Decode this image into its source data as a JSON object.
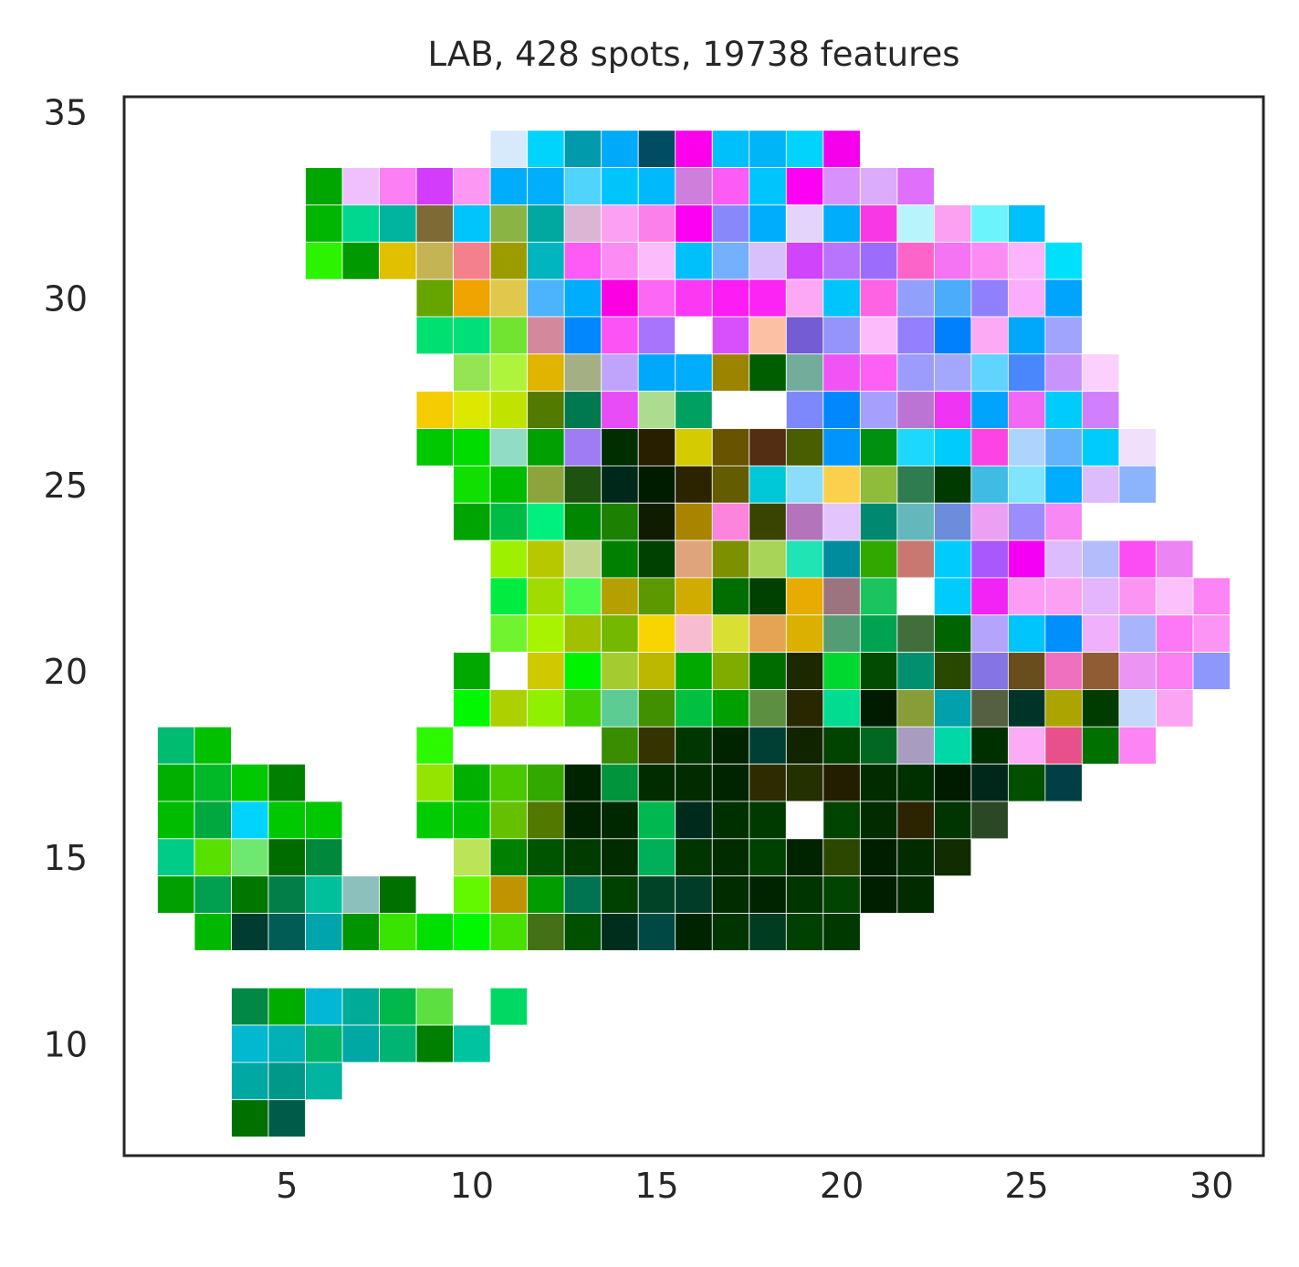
{
  "chart_data": {
    "type": "heatmap",
    "title": "LAB, 428 spots, 19738 features",
    "xlabel": "",
    "ylabel": "",
    "xlim": [
      0.6,
      31.4
    ],
    "ylim": [
      7.0,
      35.4
    ],
    "xticks": [
      5,
      10,
      15,
      20,
      25,
      30
    ],
    "yticks": [
      10,
      15,
      20,
      25,
      30,
      35
    ],
    "grid": false,
    "legend": "none",
    "cell_size": 1,
    "cell_edge_color": "#ffffff",
    "rows": [
      {
        "y": 34,
        "x_start": 11,
        "colors": [
          "#d6eafc",
          "#00d4fc",
          "#009aac",
          "#00aaf8",
          "#004c62",
          "#fc00ec",
          "#00c0fc",
          "#00b4f8",
          "#00d4fc",
          "#f400ec"
        ]
      },
      {
        "y": 33,
        "x_start": 6,
        "colors": [
          "#00a600",
          "#f0c0fc",
          "#fc80f4",
          "#d43cfc",
          "#fc98f4",
          "#00acfc",
          "#00aefc",
          "#50d4fc",
          "#00c4fc",
          "#00b8fc",
          "#d07edc",
          "#fc5cf4",
          "#00c4fc",
          "#fc00f4",
          "#d890fc",
          "#dcacfc",
          "#e070fc"
        ]
      },
      {
        "y": 32,
        "x_start": 6,
        "colors": [
          "#00b600",
          "#00d890",
          "#00b4a0",
          "#7e6a34",
          "#00c4fc",
          "#8ab444",
          "#00a8a0",
          "#dcb4d4",
          "#fca0f4",
          "#fc80ec",
          "#fc00f4",
          "#8888fc",
          "#00acfc",
          "#e4d4fc",
          "#00acfc",
          "#f838e4",
          "#b8f4fc",
          "#fca0f4",
          "#6cf4fc",
          "#00c0fc"
        ]
      },
      {
        "y": 31,
        "x_start": 6,
        "colors": [
          "#2cf400",
          "#009a00",
          "#e0c000",
          "#c4b454",
          "#f4808c",
          "#9c9c00",
          "#00b4c0",
          "#fc5cf4",
          "#fc8cf4",
          "#fcbcfc",
          "#00c0fc",
          "#74b0fc",
          "#d8c0fc",
          "#d044fc",
          "#b874fc",
          "#9c6cfc",
          "#fc64c8",
          "#f474f4",
          "#fc8cf4",
          "#fcb4fc",
          "#00e0fc"
        ]
      },
      {
        "y": 30,
        "x_start": 9,
        "colors": [
          "#66a400",
          "#f0a400",
          "#e0c84c",
          "#4cb4fc",
          "#00acfc",
          "#fc00e4",
          "#fc68f4",
          "#fc38f4",
          "#fc1cf4",
          "#fc24f4",
          "#fca8f4",
          "#00c4fc",
          "#fc64e4",
          "#90a0fc",
          "#4cacfc",
          "#9080fc",
          "#fcacfc",
          "#00a4fc"
        ]
      },
      {
        "y": 29,
        "x_start": 9,
        "colors": [
          "#00e070",
          "#00e078",
          "#70e430",
          "#d4889c",
          "#0088fc",
          "#fc54f4",
          "#a874fc",
          "#ffffff",
          "#d850fc",
          "#fcc0a4",
          "#745cd4",
          "#9494fc",
          "#fcbcfc",
          "#9480fc",
          "#0080fc",
          "#fcaaf4",
          "#00a8fc",
          "#a0a4fc"
        ]
      },
      {
        "y": 28,
        "x_start": 10,
        "colors": [
          "#94e454",
          "#aef43c",
          "#e0b400",
          "#a4b084",
          "#c0a4fc",
          "#00a8fc",
          "#00acfc",
          "#9c8400",
          "#005e00",
          "#74ac9c",
          "#f054f4",
          "#fc60f4",
          "#9c9cfc",
          "#a4a8fc",
          "#60d4fc",
          "#4888fc",
          "#c894fc",
          "#fcd0fc"
        ]
      },
      {
        "y": 27,
        "x_start": 9,
        "colors": [
          "#f4cc00",
          "#dce800",
          "#c0e400",
          "#527a00",
          "#007850",
          "#e84cf4",
          "#acdc90",
          "#00a060",
          "#ffffff",
          "#ffffff",
          "#7c88fc",
          "#0088fc",
          "#a4a0fc",
          "#bc74d4",
          "#f034f4",
          "#00a4fc",
          "#f068f4",
          "#00ccfc",
          "#d080fc"
        ]
      },
      {
        "y": 26,
        "x_start": 9,
        "colors": [
          "#00c800",
          "#00dc00",
          "#90dcc4",
          "#00a000",
          "#a07cf4",
          "#002e00",
          "#281e00",
          "#d4cc00",
          "#685400",
          "#542e12",
          "#485e00",
          "#0094fc",
          "#009010",
          "#1cd8fc",
          "#00ccfc",
          "#fc44e4",
          "#acd4fc",
          "#64b4fc",
          "#00ccfc",
          "#f0e0fc"
        ]
      },
      {
        "y": 25,
        "x_start": 10,
        "colors": [
          "#10e000",
          "#00bc00",
          "#8ca43c",
          "#1e5210",
          "#00281a",
          "#001c00",
          "#2c2400",
          "#645c00",
          "#00c8d8",
          "#8cdcfc",
          "#fcd04c",
          "#90bc3c",
          "#2e7c50",
          "#003a00",
          "#40bce4",
          "#80e4fc",
          "#00acfc",
          "#dcbcfc",
          "#8cb4fc"
        ]
      },
      {
        "y": 24,
        "x_start": 10,
        "colors": [
          "#00a400",
          "#00bc44",
          "#00f080",
          "#008600",
          "#1c8000",
          "#101c00",
          "#a88400",
          "#fc84dc",
          "#384400",
          "#b474bc",
          "#e4c4fc",
          "#008870",
          "#64b8bc",
          "#6c8cdc",
          "#eca0f4",
          "#9c8cfc",
          "#f888f4"
        ]
      },
      {
        "y": 23,
        "x_start": 11,
        "colors": [
          "#9cf000",
          "#b8c800",
          "#c0d48c",
          "#008000",
          "#004000",
          "#e0a47c",
          "#7c9000",
          "#a8d458",
          "#20e4b4",
          "#008c9c",
          "#30a800",
          "#c87870",
          "#00ccfc",
          "#a858fc",
          "#f400f4",
          "#dcbcfc",
          "#b4bcfc",
          "#fc4cf4",
          "#ec84f4"
        ]
      },
      {
        "y": 22,
        "x_start": 11,
        "colors": [
          "#00ec40",
          "#a0dc00",
          "#4cfc4c",
          "#b4a000",
          "#5c9800",
          "#d0ac00",
          "#006e00",
          "#004000",
          "#e8ac00",
          "#9c7480",
          "#1cc460",
          "#ffffff",
          "#00ccfc",
          "#f024f4",
          "#fc9cf4",
          "#fca0f4",
          "#e4b4fc",
          "#fc94f4",
          "#fcc0fc",
          "#fc84f4"
        ]
      },
      {
        "y": 21,
        "x_start": 11,
        "colors": [
          "#70f430",
          "#a8f400",
          "#a0c000",
          "#74b800",
          "#f8d400",
          "#f8bcd0",
          "#d8e034",
          "#e4a454",
          "#dcb000",
          "#549c74",
          "#00a450",
          "#426e3c",
          "#006400",
          "#b4a4fc",
          "#00c4fc",
          "#0090fc",
          "#f0b0fc",
          "#a8b4fc",
          "#fc78f4",
          "#fc94f4"
        ]
      },
      {
        "y": 20,
        "x_start": 10,
        "colors": [
          "#00a800",
          "#ffffff",
          "#d0c800",
          "#00f400",
          "#a4cc30",
          "#bcb800",
          "#00a800",
          "#80ac00",
          "#006c00",
          "#1c2800",
          "#00d830",
          "#004c00",
          "#009070",
          "#284800",
          "#8474e4",
          "#684e1c",
          "#f070c0",
          "#905c34",
          "#ec94f4",
          "#fc80f4",
          "#8c98fc"
        ]
      },
      {
        "y": 19,
        "x_start": 10,
        "colors": [
          "#00f800",
          "#acd000",
          "#90f000",
          "#44d000",
          "#5ccc94",
          "#409000",
          "#00c040",
          "#00a000",
          "#5c9040",
          "#282800",
          "#00dc90",
          "#001c00",
          "#889c38",
          "#00a0ac",
          "#546040",
          "#003428",
          "#aca400",
          "#003c00",
          "#c4d8fc",
          "#fca4f4"
        ]
      },
      {
        "y": 18,
        "x_start": 2,
        "colors": [
          "#00bc70",
          "#00c000",
          "#ffffff",
          "#ffffff",
          "#ffffff",
          "#ffffff",
          "#ffffff",
          "#2cf800",
          "#ffffff",
          "#ffffff",
          "#ffffff",
          "#ffffff",
          "#3a8c00",
          "#343400",
          "#003600",
          "#002400",
          "#004034",
          "#102400",
          "#004400",
          "#006820",
          "#a89cc0",
          "#00d8a8",
          "#003000",
          "#fcacf4",
          "#e8508c",
          "#007000",
          "#fc84f4"
        ]
      },
      {
        "y": 17,
        "x_start": 2,
        "colors": [
          "#00b000",
          "#00b828",
          "#00c800",
          "#008000",
          "#ffffff",
          "#ffffff",
          "#ffffff",
          "#94e400",
          "#00b000",
          "#4cc800",
          "#34a800",
          "#002400",
          "#00943c",
          "#002c00",
          "#002c00",
          "#002400",
          "#2c2c00",
          "#243000",
          "#241e00",
          "#002c00",
          "#003000",
          "#001c00",
          "#00281a",
          "#005000",
          "#004044"
        ]
      },
      {
        "y": 16,
        "x_start": 2,
        "colors": [
          "#00bc00",
          "#00a840",
          "#00d4fc",
          "#00c800",
          "#00c800",
          "#ffffff",
          "#ffffff",
          "#00cc00",
          "#00c400",
          "#64c000",
          "#527800",
          "#002400",
          "#002800",
          "#00b850",
          "#002a1c",
          "#003000",
          "#003a00",
          "#ffffff",
          "#004400",
          "#002c00",
          "#2c2400",
          "#003400",
          "#2a4824"
        ]
      },
      {
        "y": 15,
        "x_start": 2,
        "colors": [
          "#00cc88",
          "#58e000",
          "#70e870",
          "#006c00",
          "#00883c",
          "#ffffff",
          "#ffffff",
          "#ffffff",
          "#bce458",
          "#008000",
          "#005400",
          "#003c00",
          "#002c00",
          "#00b058",
          "#003400",
          "#002c00",
          "#004000",
          "#002400",
          "#2c4800",
          "#001e00",
          "#002c00",
          "#102c00"
        ]
      },
      {
        "y": 14,
        "x_start": 2,
        "colors": [
          "#00a000",
          "#00a050",
          "#007800",
          "#008048",
          "#00c09c",
          "#8cc0bc",
          "#007000",
          "#ffffff",
          "#64f800",
          "#c09400",
          "#009c00",
          "#007450",
          "#004000",
          "#004428",
          "#003c28",
          "#002c00",
          "#002400",
          "#003400",
          "#004400",
          "#001e00",
          "#002c00"
        ]
      },
      {
        "y": 13,
        "x_start": 3,
        "colors": [
          "#00b800",
          "#003c30",
          "#005c54",
          "#00a4ac",
          "#009400",
          "#38e400",
          "#00e000",
          "#00f800",
          "#48e000",
          "#447018",
          "#005000",
          "#002e1c",
          "#004844",
          "#002400",
          "#003400",
          "#003c20",
          "#004000",
          "#003800"
        ]
      },
      {
        "y": 11,
        "x_start": 4,
        "colors": [
          "#008844",
          "#00ac00",
          "#00b8d4",
          "#00ac98",
          "#00b84c",
          "#5ce040",
          "#ffffff",
          "#00d864"
        ]
      },
      {
        "y": 10,
        "x_start": 4,
        "colors": [
          "#00b8d0",
          "#00b0b4",
          "#00b468",
          "#00a8a4",
          "#00b474",
          "#008000",
          "#00c4a0"
        ]
      },
      {
        "y": 9,
        "x_start": 4,
        "colors": [
          "#00a8a4",
          "#009888",
          "#00b4a0"
        ]
      },
      {
        "y": 8,
        "x_start": 4,
        "colors": [
          "#007000",
          "#005c48"
        ]
      }
    ]
  }
}
